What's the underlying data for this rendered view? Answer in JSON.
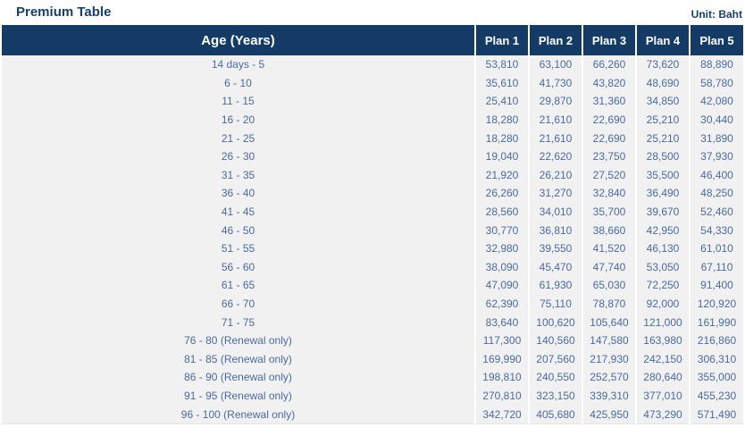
{
  "page": {
    "title": "Premium Table",
    "unit_label": "Unit: Baht"
  },
  "colors": {
    "header_bg": "#133b66",
    "header_text": "#ffffff",
    "body_bg": "#f1f1f2",
    "body_text": "#4a6b9e",
    "title_text": "#173f6f"
  },
  "table": {
    "age_header": "Age (Years)",
    "plan_headers": [
      "Plan 1",
      "Plan 2",
      "Plan 3",
      "Plan 4",
      "Plan 5"
    ],
    "rows": [
      {
        "age": "14 days - 5",
        "values": [
          "53,810",
          "63,100",
          "66,260",
          "73,620",
          "88,890"
        ]
      },
      {
        "age": "6 - 10",
        "values": [
          "35,610",
          "41,730",
          "43,820",
          "48,690",
          "58,780"
        ]
      },
      {
        "age": "11 - 15",
        "values": [
          "25,410",
          "29,870",
          "31,360",
          "34,850",
          "42,080"
        ]
      },
      {
        "age": "16 - 20",
        "values": [
          "18,280",
          "21,610",
          "22,690",
          "25,210",
          "30,440"
        ]
      },
      {
        "age": "21 - 25",
        "values": [
          "18,280",
          "21,610",
          "22,690",
          "25,210",
          "31,890"
        ]
      },
      {
        "age": "26 - 30",
        "values": [
          "19,040",
          "22,620",
          "23,750",
          "28,500",
          "37,930"
        ]
      },
      {
        "age": "31 - 35",
        "values": [
          "21,920",
          "26,210",
          "27,520",
          "35,500",
          "46,400"
        ]
      },
      {
        "age": "36 - 40",
        "values": [
          "26,260",
          "31,270",
          "32,840",
          "36,490",
          "48,250"
        ]
      },
      {
        "age": "41 - 45",
        "values": [
          "28,560",
          "34,010",
          "35,700",
          "39,670",
          "52,460"
        ]
      },
      {
        "age": "46 - 50",
        "values": [
          "30,770",
          "36,810",
          "38,660",
          "42,950",
          "54,330"
        ]
      },
      {
        "age": "51 - 55",
        "values": [
          "32,980",
          "39,550",
          "41,520",
          "46,130",
          "61,010"
        ]
      },
      {
        "age": "56 - 60",
        "values": [
          "38,090",
          "45,470",
          "47,740",
          "53,050",
          "67,110"
        ]
      },
      {
        "age": "61 - 65",
        "values": [
          "47,090",
          "61,930",
          "65,030",
          "72,250",
          "91,400"
        ]
      },
      {
        "age": "66 - 70",
        "values": [
          "62,390",
          "75,110",
          "78,870",
          "92,000",
          "120,920"
        ]
      },
      {
        "age": "71 - 75",
        "values": [
          "83,640",
          "100,620",
          "105,640",
          "121,000",
          "161,990"
        ]
      },
      {
        "age": "76 - 80 (Renewal only)",
        "values": [
          "117,300",
          "140,560",
          "147,580",
          "163,980",
          "216,860"
        ]
      },
      {
        "age": "81 - 85 (Renewal only)",
        "values": [
          "169,990",
          "207,560",
          "217,930",
          "242,150",
          "306,310"
        ]
      },
      {
        "age": "86 - 90 (Renewal only)",
        "values": [
          "198,810",
          "240,550",
          "252,570",
          "280,640",
          "355,000"
        ]
      },
      {
        "age": "91 - 95 (Renewal only)",
        "values": [
          "270,810",
          "323,150",
          "339,310",
          "377,010",
          "455,230"
        ]
      },
      {
        "age": "96 - 100 (Renewal only)",
        "values": [
          "342,720",
          "405,680",
          "425,950",
          "473,290",
          "571,490"
        ]
      }
    ]
  }
}
